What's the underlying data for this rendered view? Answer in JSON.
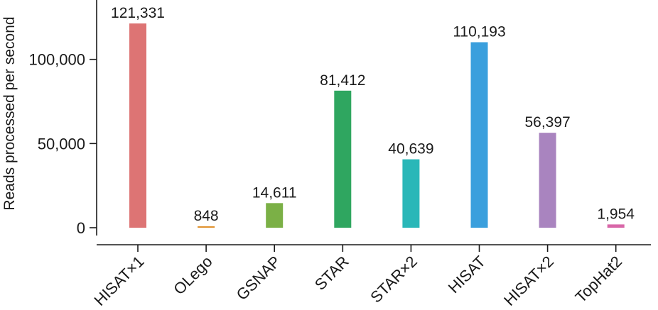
{
  "chart_data": {
    "type": "bar",
    "title": "",
    "xlabel": "",
    "ylabel": "Reads processed per second",
    "ylim": [
      0,
      135000
    ],
    "yticks": [
      0,
      50000,
      100000
    ],
    "ytick_labels": [
      "0",
      "50,000",
      "100,000"
    ],
    "grid": false,
    "legend": "none",
    "categories": [
      "HISAT×1",
      "OLego",
      "GSNAP",
      "STAR",
      "STAR×2",
      "HISAT",
      "HISAT×2",
      "TopHat2"
    ],
    "values": [
      121331,
      848,
      14611,
      81412,
      40639,
      110193,
      56397,
      1954
    ],
    "value_labels": [
      "121,331",
      "848",
      "14,611",
      "81,412",
      "40,639",
      "110,193",
      "56,397",
      "1,954"
    ],
    "colors": [
      "#dd7474",
      "#e0922e",
      "#7bb046",
      "#2fa660",
      "#2ab7b8",
      "#3a9fdd",
      "#a984bf",
      "#d867a8"
    ],
    "axis_color": "#1a1a1a"
  }
}
